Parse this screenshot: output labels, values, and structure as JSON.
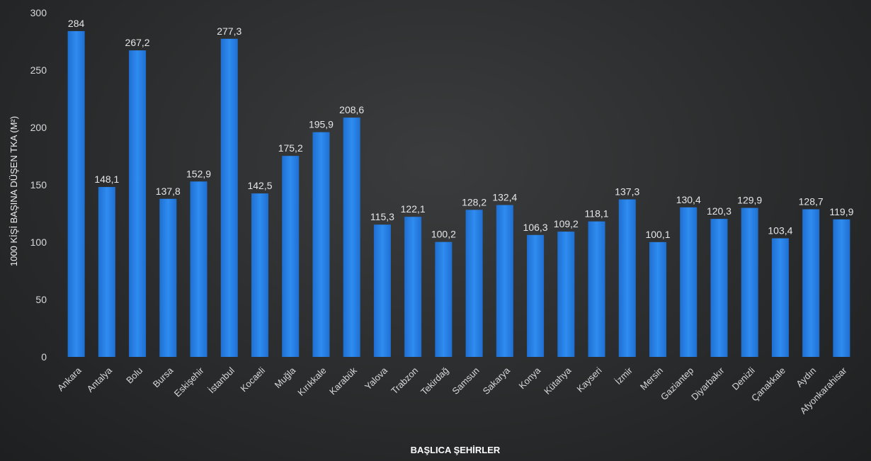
{
  "chart_data": {
    "type": "bar",
    "title": "",
    "xlabel": "BAŞLICA ŞEHİRLER",
    "ylabel": "1000 KİŞİ BAŞINA DÜŞEN TKA (M²)",
    "ylim": [
      0,
      300
    ],
    "yticks": [
      "0",
      "50",
      "100",
      "150",
      "200",
      "250",
      "300"
    ],
    "grid": false,
    "legend": "none",
    "bar_color": "#2a7fe0",
    "categories": [
      "Ankara",
      "Antalya",
      "Bolu",
      "Bursa",
      "Eskişehir",
      "İstanbul",
      "Kocaeli",
      "Muğla",
      "Kırıkkale",
      "Karabük",
      "Yalova",
      "Trabzon",
      "Tekirdağ",
      "Samsun",
      "Sakarya",
      "Konya",
      "Kütahya",
      "Kayseri",
      "İzmir",
      "Mersin",
      "Gaziantep",
      "Diyarbakır",
      "Denizli",
      "Çanakkale",
      "Aydın",
      "Afyonkarahisar"
    ],
    "values": [
      284,
      148.1,
      267.2,
      137.8,
      152.9,
      277.3,
      142.5,
      175.2,
      195.9,
      208.6,
      115.3,
      122.1,
      100.2,
      128.2,
      132.4,
      106.3,
      109.2,
      118.1,
      137.3,
      100.1,
      130.4,
      120.3,
      129.9,
      103.4,
      128.7,
      119.9
    ],
    "data_labels": [
      "284",
      "148,1",
      "267,2",
      "137,8",
      "152,9",
      "277,3",
      "142,5",
      "175,2",
      "195,9",
      "208,6",
      "115,3",
      "122,1",
      "100,2",
      "128,2",
      "132,4",
      "106,3",
      "109,2",
      "118,1",
      "137,3",
      "100,1",
      "130,4",
      "120,3",
      "129,9",
      "103,4",
      "128,7",
      "119,9"
    ]
  }
}
